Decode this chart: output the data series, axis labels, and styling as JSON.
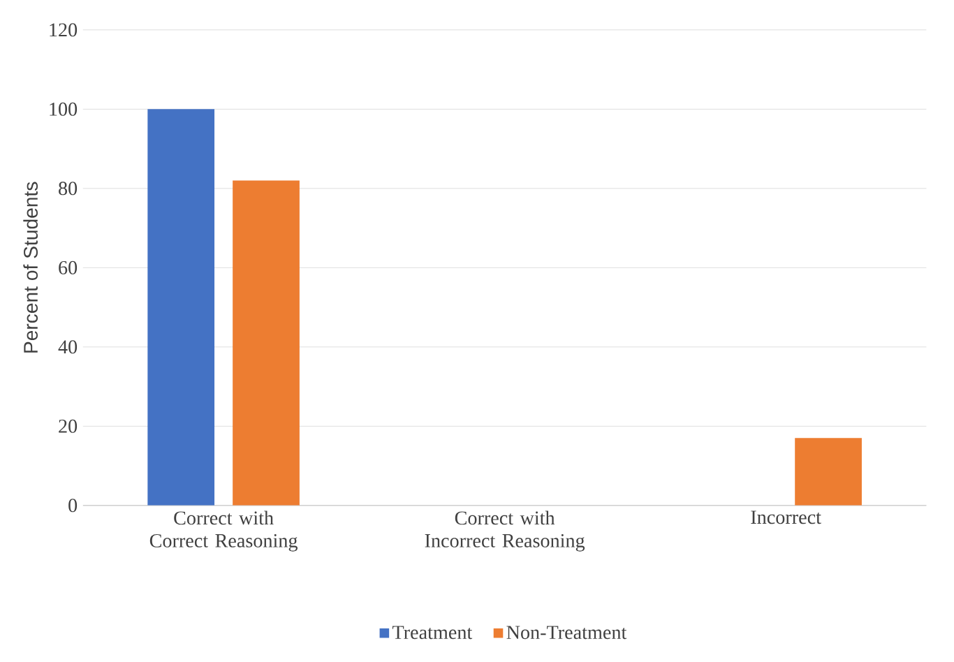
{
  "chart_data": {
    "type": "bar",
    "ylabel": "Percent of Students",
    "categories": [
      "Correct with Correct Reasoning",
      "Correct with Incorrect Reasoning",
      "Incorrect"
    ],
    "series": [
      {
        "name": "Treatment",
        "color": "#4472c4",
        "values": [
          100,
          0,
          0
        ]
      },
      {
        "name": "Non-Treatment",
        "color": "#ed7d31",
        "values": [
          82,
          0,
          17
        ]
      }
    ],
    "ylim": [
      0,
      120
    ],
    "yticks": [
      0,
      20,
      40,
      60,
      80,
      100,
      120
    ],
    "grid": "y",
    "legend": "bottom"
  }
}
